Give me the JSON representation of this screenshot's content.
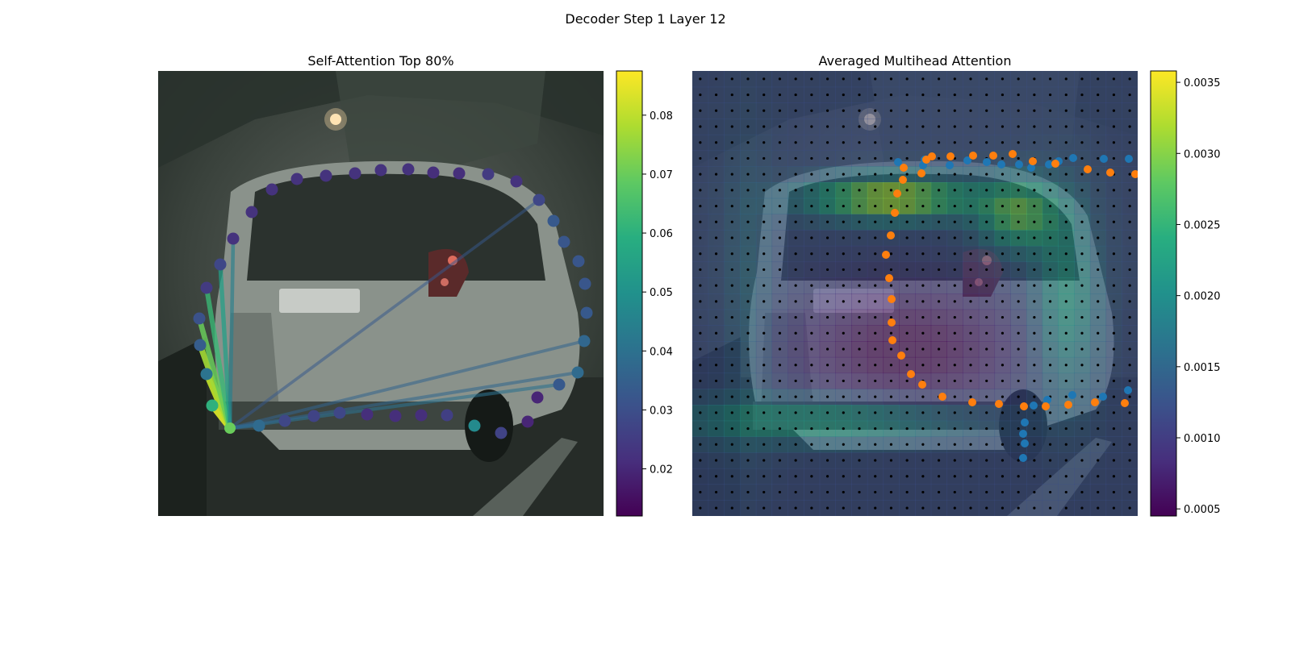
{
  "figure": {
    "suptitle": "Decoder Step 1 Layer 12"
  },
  "chart_data": [
    {
      "type": "scatter",
      "title": "Self-Attention Top 80%",
      "background": "street photo of silver hatchback car (rear view)",
      "colormap": "viridis",
      "colorbar": {
        "min": 0.012,
        "max": 0.0875,
        "ticks": [
          0.02,
          0.03,
          0.04,
          0.05,
          0.06,
          0.07,
          0.08
        ]
      },
      "query_point": {
        "x": 89,
        "y": 443,
        "value": 0.07
      },
      "polygon_points": [
        [
          89,
          443,
          0.07
        ],
        [
          125,
          440,
          0.038
        ],
        [
          157,
          434,
          0.028
        ],
        [
          193,
          428,
          0.027
        ],
        [
          225,
          424,
          0.028
        ],
        [
          259,
          426,
          0.022
        ],
        [
          294,
          428,
          0.022
        ],
        [
          326,
          427,
          0.022
        ],
        [
          358,
          427,
          0.026
        ],
        [
          392,
          440,
          0.048
        ],
        [
          425,
          449,
          0.027
        ],
        [
          458,
          435,
          0.02
        ],
        [
          470,
          405,
          0.02
        ],
        [
          497,
          389,
          0.033
        ],
        [
          520,
          374,
          0.038
        ],
        [
          528,
          335,
          0.037
        ],
        [
          531,
          300,
          0.033
        ],
        [
          529,
          264,
          0.032
        ],
        [
          521,
          236,
          0.032
        ],
        [
          503,
          212,
          0.032
        ],
        [
          490,
          186,
          0.033
        ],
        [
          472,
          160,
          0.028
        ],
        [
          444,
          137,
          0.023
        ],
        [
          409,
          128,
          0.025
        ],
        [
          373,
          127,
          0.022
        ],
        [
          341,
          126,
          0.022
        ],
        [
          310,
          122,
          0.023
        ],
        [
          276,
          123,
          0.023
        ],
        [
          244,
          127,
          0.023
        ],
        [
          208,
          130,
          0.023
        ],
        [
          172,
          134,
          0.023
        ],
        [
          141,
          147,
          0.023
        ],
        [
          116,
          175,
          0.023
        ],
        [
          93,
          208,
          0.023
        ],
        [
          77,
          240,
          0.028
        ],
        [
          60,
          269,
          0.025
        ],
        [
          51,
          307,
          0.031
        ],
        [
          52,
          340,
          0.034
        ],
        [
          60,
          376,
          0.041
        ],
        [
          67,
          415,
          0.06
        ]
      ],
      "attention_lines": [
        [
          0,
          39,
          0.083
        ],
        [
          0,
          38,
          0.08
        ],
        [
          0,
          37,
          0.077
        ],
        [
          0,
          36,
          0.07
        ],
        [
          0,
          35,
          0.063
        ],
        [
          0,
          34,
          0.055
        ],
        [
          0,
          33,
          0.045
        ],
        [
          0,
          13,
          0.04
        ],
        [
          0,
          14,
          0.037
        ],
        [
          0,
          15,
          0.036
        ],
        [
          0,
          21,
          0.033
        ],
        [
          0,
          1,
          0.038
        ]
      ]
    },
    {
      "type": "heatmap",
      "title": "Averaged Multihead Attention",
      "background": "street photo of silver hatchback car (rear view)",
      "colormap": "viridis",
      "colorbar": {
        "min": 0.00045,
        "max": 0.00358,
        "ticks": [
          0.0005,
          0.001,
          0.0015,
          0.002,
          0.0025,
          0.003,
          0.0035
        ]
      },
      "grid": {
        "rows": 28,
        "cols": 28
      },
      "series": [
        {
          "color": "#1f77b4",
          "points": [
            [
              288,
              110
            ],
            [
              255,
              113
            ],
            [
              286,
              117
            ],
            [
              319,
              117
            ],
            [
              341,
              111
            ],
            [
              365,
              113
            ],
            [
              383,
              116
            ],
            [
              405,
              116
            ],
            [
              420,
              120
            ],
            [
              442,
              116
            ],
            [
              454,
              112
            ],
            [
              472,
              108
            ],
            [
              510,
              109
            ],
            [
              541,
              109
            ],
            [
              574,
              113
            ],
            [
              596,
              113
            ],
            [
              624,
              113
            ],
            [
              649,
              109
            ],
            [
              672,
              107
            ],
            [
              704,
              102
            ],
            [
              732,
              99
            ],
            [
              759,
              101
            ],
            [
              797,
              106
            ],
            [
              819,
              106
            ],
            [
              848,
              105
            ],
            [
              867,
              99
            ],
            [
              884,
              91
            ],
            [
              907,
              99
            ],
            [
              908,
              127
            ],
            [
              911,
              149
            ],
            [
              916,
              187
            ],
            [
              924,
              214
            ],
            [
              942,
              224
            ],
            [
              931,
              251
            ],
            [
              918,
              276
            ],
            [
              895,
              296
            ],
            [
              902,
              318
            ],
            [
              893,
              340
            ],
            [
              891,
              362
            ],
            [
              873,
              367
            ],
            [
              839,
              387
            ],
            [
              816,
              399
            ],
            [
              800,
              403
            ],
            [
              768,
              400
            ],
            [
              732,
              400
            ],
            [
              701,
              396
            ],
            [
              670,
              394
            ],
            [
              640,
              396
            ],
            [
              608,
              396
            ],
            [
              574,
              397
            ],
            [
              540,
              396
            ],
            [
              509,
              404
            ],
            [
              471,
              402
            ],
            [
              440,
              408
            ],
            [
              423,
              415
            ],
            [
              412,
              436
            ],
            [
              410,
              450
            ],
            [
              412,
              462
            ],
            [
              410,
              480
            ]
          ]
        },
        {
          "color": "#ff7f0e",
          "points": [
            [
              284,
              127
            ],
            [
              261,
              135
            ],
            [
              254,
              152
            ],
            [
              251,
              176
            ],
            [
              246,
              204
            ],
            [
              240,
              228
            ],
            [
              244,
              257
            ],
            [
              247,
              283
            ],
            [
              247,
              312
            ],
            [
              248,
              334
            ],
            [
              259,
              353
            ],
            [
              271,
              376
            ],
            [
              285,
              389
            ],
            [
              310,
              404
            ],
            [
              347,
              411
            ],
            [
              380,
              413
            ],
            [
              411,
              416
            ],
            [
              438,
              416
            ],
            [
              466,
              414
            ],
            [
              499,
              411
            ],
            [
              536,
              412
            ],
            [
              570,
              408
            ],
            [
              600,
              406
            ],
            [
              631,
              401
            ],
            [
              664,
              402
            ],
            [
              700,
              402
            ],
            [
              731,
              407
            ],
            [
              766,
              413
            ],
            [
              804,
              417
            ],
            [
              842,
              418
            ],
            [
              869,
              409
            ],
            [
              880,
              387
            ],
            [
              882,
              361
            ],
            [
              888,
              344
            ],
            [
              884,
              318
            ],
            [
              875,
              301
            ],
            [
              867,
              281
            ],
            [
              847,
              260
            ],
            [
              818,
              242
            ],
            [
              795,
              220
            ],
            [
              775,
              202
            ],
            [
              756,
              186
            ],
            [
              726,
              174
            ],
            [
              706,
              160
            ],
            [
              672,
              150
            ],
            [
              643,
              142
            ],
            [
              611,
              136
            ],
            [
              579,
              133
            ],
            [
              549,
              128
            ],
            [
              518,
              126
            ],
            [
              490,
              122
            ],
            [
              450,
              115
            ],
            [
              422,
              112
            ],
            [
              397,
              103
            ],
            [
              373,
              105
            ],
            [
              348,
              105
            ],
            [
              320,
              106
            ],
            [
              297,
              106
            ],
            [
              262,
              120
            ],
            [
              290,
              110
            ]
          ]
        }
      ]
    }
  ]
}
